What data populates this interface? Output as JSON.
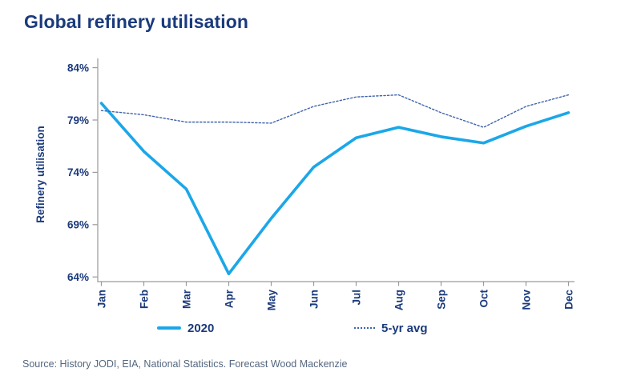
{
  "title": "Global refinery utilisation",
  "source": "Source: History JODI, EIA, National Statistics. Forecast Wood Mackenzie",
  "legend": {
    "items": [
      {
        "label": "2020",
        "style": "solid"
      },
      {
        "label": "5-yr avg",
        "style": "dotted"
      }
    ]
  },
  "colors": {
    "navy": "#1a3a7c",
    "cyan": "#1ba7e8",
    "dotted_blue": "#3f63ac",
    "axis_gray": "#9a9a9a",
    "source_gray": "#54677f"
  },
  "chart_data": {
    "type": "line",
    "title": "Global refinery utilisation",
    "xlabel": "",
    "ylabel": "Refinery utilisation",
    "categories": [
      "Jan",
      "Feb",
      "Mar",
      "Apr",
      "May",
      "Jun",
      "Jul",
      "Aug",
      "Sep",
      "Oct",
      "Nov",
      "Dec"
    ],
    "series": [
      {
        "name": "2020",
        "style": "solid",
        "color_key": "cyan",
        "values": [
          80.6,
          76.0,
          72.4,
          64.3,
          69.6,
          74.5,
          77.3,
          78.3,
          77.4,
          76.8,
          78.4,
          79.7
        ]
      },
      {
        "name": "5-yr avg",
        "style": "dotted",
        "color_key": "dotted_blue",
        "values": [
          79.9,
          79.5,
          78.8,
          78.8,
          78.7,
          80.3,
          81.2,
          81.4,
          79.7,
          78.3,
          80.3,
          81.4
        ]
      }
    ],
    "ylim": [
      64,
      84
    ],
    "yticks": [
      64,
      69,
      74,
      79,
      84
    ],
    "ytick_format": "{v}%",
    "grid": false,
    "legend_position": "bottom"
  }
}
